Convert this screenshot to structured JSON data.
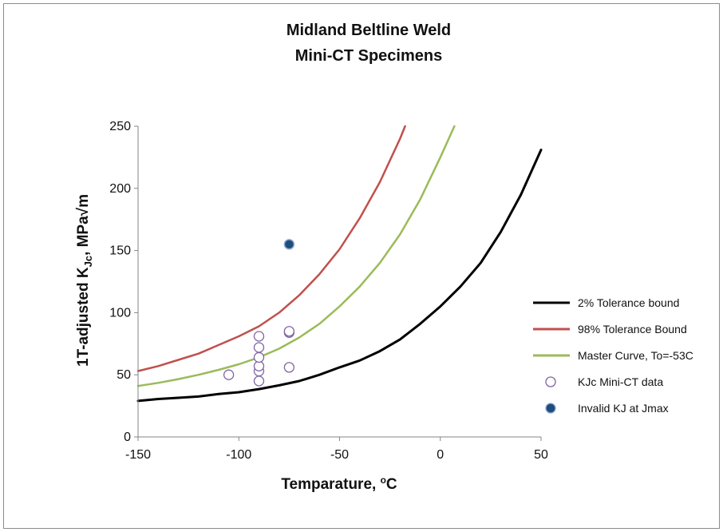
{
  "chart_data": {
    "type": "line",
    "title_lines": [
      "Midland Beltline Weld",
      "Mini-CT Specimens"
    ],
    "xlabel": "Temparature, ",
    "xlabel_unit_sup": "o",
    "xlabel_unit": "C",
    "ylabel_prefix": "1T-adjusted K",
    "ylabel_sub": "Jc",
    "ylabel_suffix": ", MPa√m",
    "xlim": [
      -150,
      50
    ],
    "ylim": [
      0,
      250
    ],
    "x_ticks": [
      -150,
      -100,
      -50,
      0,
      50
    ],
    "y_ticks": [
      0,
      50,
      100,
      150,
      200,
      250
    ],
    "x_tick_labels": [
      "-150",
      "-100",
      "-50",
      "0",
      "50"
    ],
    "y_tick_labels": [
      "0",
      "50",
      "100",
      "150",
      "200",
      "250"
    ],
    "grid": false,
    "legend_position": "right",
    "series": [
      {
        "name": "2% Tolerance bound",
        "kind": "line",
        "color": "#000000",
        "points": [
          [
            -150,
            29
          ],
          [
            -140,
            30.5
          ],
          [
            -130,
            31.5
          ],
          [
            -120,
            32.5
          ],
          [
            -110,
            34.5
          ],
          [
            -100,
            36
          ],
          [
            -90,
            38.5
          ],
          [
            -80,
            41.5
          ],
          [
            -70,
            45
          ],
          [
            -60,
            50
          ],
          [
            -50,
            56
          ],
          [
            -40,
            61.5
          ],
          [
            -30,
            69
          ],
          [
            -20,
            78.5
          ],
          [
            -10,
            91
          ],
          [
            0,
            105
          ],
          [
            10,
            121
          ],
          [
            20,
            140
          ],
          [
            30,
            165
          ],
          [
            40,
            195
          ],
          [
            50,
            231
          ]
        ]
      },
      {
        "name": "98% Tolerance Bound",
        "kind": "line",
        "color": "#c0504d",
        "points": [
          [
            -150,
            53
          ],
          [
            -140,
            57
          ],
          [
            -130,
            62
          ],
          [
            -120,
            67
          ],
          [
            -110,
            74
          ],
          [
            -100,
            81
          ],
          [
            -90,
            89
          ],
          [
            -80,
            100
          ],
          [
            -70,
            114
          ],
          [
            -60,
            131
          ],
          [
            -50,
            151
          ],
          [
            -40,
            176
          ],
          [
            -30,
            205
          ],
          [
            -20,
            240
          ],
          [
            -17.5,
            250
          ]
        ]
      },
      {
        "name": "Master Curve, To=-53C",
        "kind": "line",
        "color": "#9bbb59",
        "points": [
          [
            -150,
            41
          ],
          [
            -140,
            43.5
          ],
          [
            -130,
            46.5
          ],
          [
            -120,
            50
          ],
          [
            -110,
            54
          ],
          [
            -100,
            58.5
          ],
          [
            -90,
            64
          ],
          [
            -80,
            71
          ],
          [
            -70,
            80
          ],
          [
            -60,
            91
          ],
          [
            -50,
            105
          ],
          [
            -40,
            121
          ],
          [
            -30,
            140
          ],
          [
            -20,
            163
          ],
          [
            -10,
            191
          ],
          [
            0,
            225
          ],
          [
            7,
            250
          ]
        ]
      },
      {
        "name": "KJc Mini-CT data",
        "kind": "scatter-open",
        "color": "#8064a2",
        "points": [
          [
            -105,
            50
          ],
          [
            -90,
            45
          ],
          [
            -90,
            53
          ],
          [
            -90,
            57
          ],
          [
            -90,
            64
          ],
          [
            -90,
            72
          ],
          [
            -90,
            81
          ],
          [
            -75,
            56
          ],
          [
            -75,
            84
          ],
          [
            -75,
            85
          ]
        ]
      },
      {
        "name": "Invalid KJ at Jmax",
        "kind": "scatter-filled",
        "color": "#1f4e79",
        "points": [
          [
            -75,
            155
          ]
        ]
      }
    ]
  }
}
